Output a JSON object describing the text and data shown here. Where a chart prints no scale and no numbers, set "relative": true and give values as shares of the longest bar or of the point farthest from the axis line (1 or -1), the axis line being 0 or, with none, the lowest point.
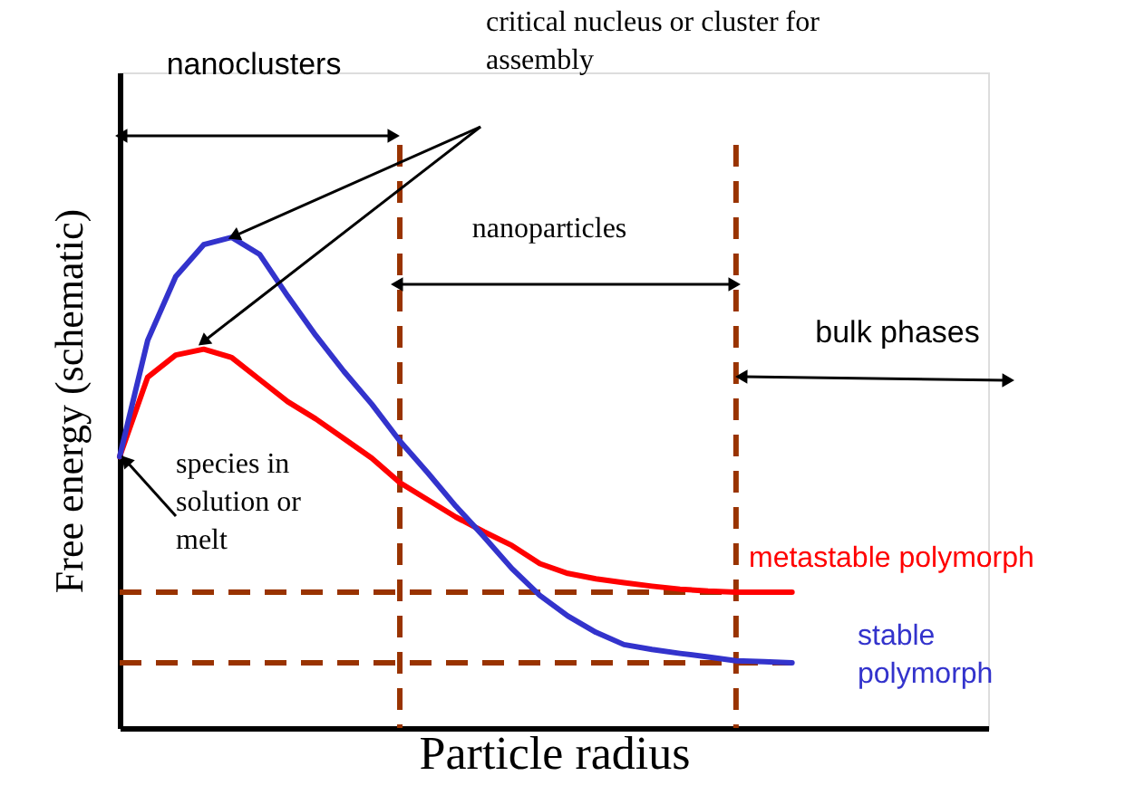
{
  "chart_data": {
    "type": "line",
    "relative": true,
    "xlabel": "Particle radius",
    "ylabel": "Free energy (schematic)",
    "grid": false,
    "legend": false,
    "marker": "none",
    "line_style": "solid",
    "categories": [
      null,
      null,
      null,
      null,
      null,
      null,
      null,
      null,
      null,
      null,
      null,
      null,
      null,
      null,
      null,
      null,
      null,
      null,
      null,
      null,
      null,
      null,
      null,
      null,
      null,
      null,
      null,
      null,
      null,
      null,
      null,
      null
    ],
    "series": [
      {
        "name": "metastable polymorph",
        "color": "#ff0000",
        "values": [
          0.553,
          0.715,
          0.76,
          0.772,
          0.755,
          0.71,
          0.665,
          0.63,
          0.59,
          0.55,
          0.5,
          0.465,
          0.43,
          0.4,
          0.372,
          0.335,
          0.315,
          0.304,
          0.296,
          0.289,
          0.283,
          0.279,
          0.277,
          0.277,
          0.277,
          null,
          null,
          null,
          null,
          null,
          null,
          null
        ]
      },
      {
        "name": "stable polymorph",
        "color": "#3333cc",
        "values": [
          0.553,
          0.79,
          0.92,
          0.985,
          1.0,
          0.965,
          0.88,
          0.8,
          0.727,
          0.66,
          0.585,
          0.52,
          0.452,
          0.39,
          0.325,
          0.27,
          0.228,
          0.195,
          0.17,
          0.16,
          0.152,
          0.145,
          0.137,
          0.135,
          0.133,
          null,
          null,
          null,
          null,
          null,
          null,
          null
        ]
      }
    ],
    "ref_lines": [
      {
        "axis": "y",
        "value": 0.277,
        "color": "#993300",
        "line_style": "dashed"
      },
      {
        "axis": "y",
        "value": 0.133,
        "color": "#993300",
        "line_style": "dashed"
      }
    ],
    "annotations": [
      "nanoclusters",
      "critical nucleus or cluster for assembly",
      "nanoparticles",
      "bulk phases",
      "species in solution or melt"
    ]
  }
}
